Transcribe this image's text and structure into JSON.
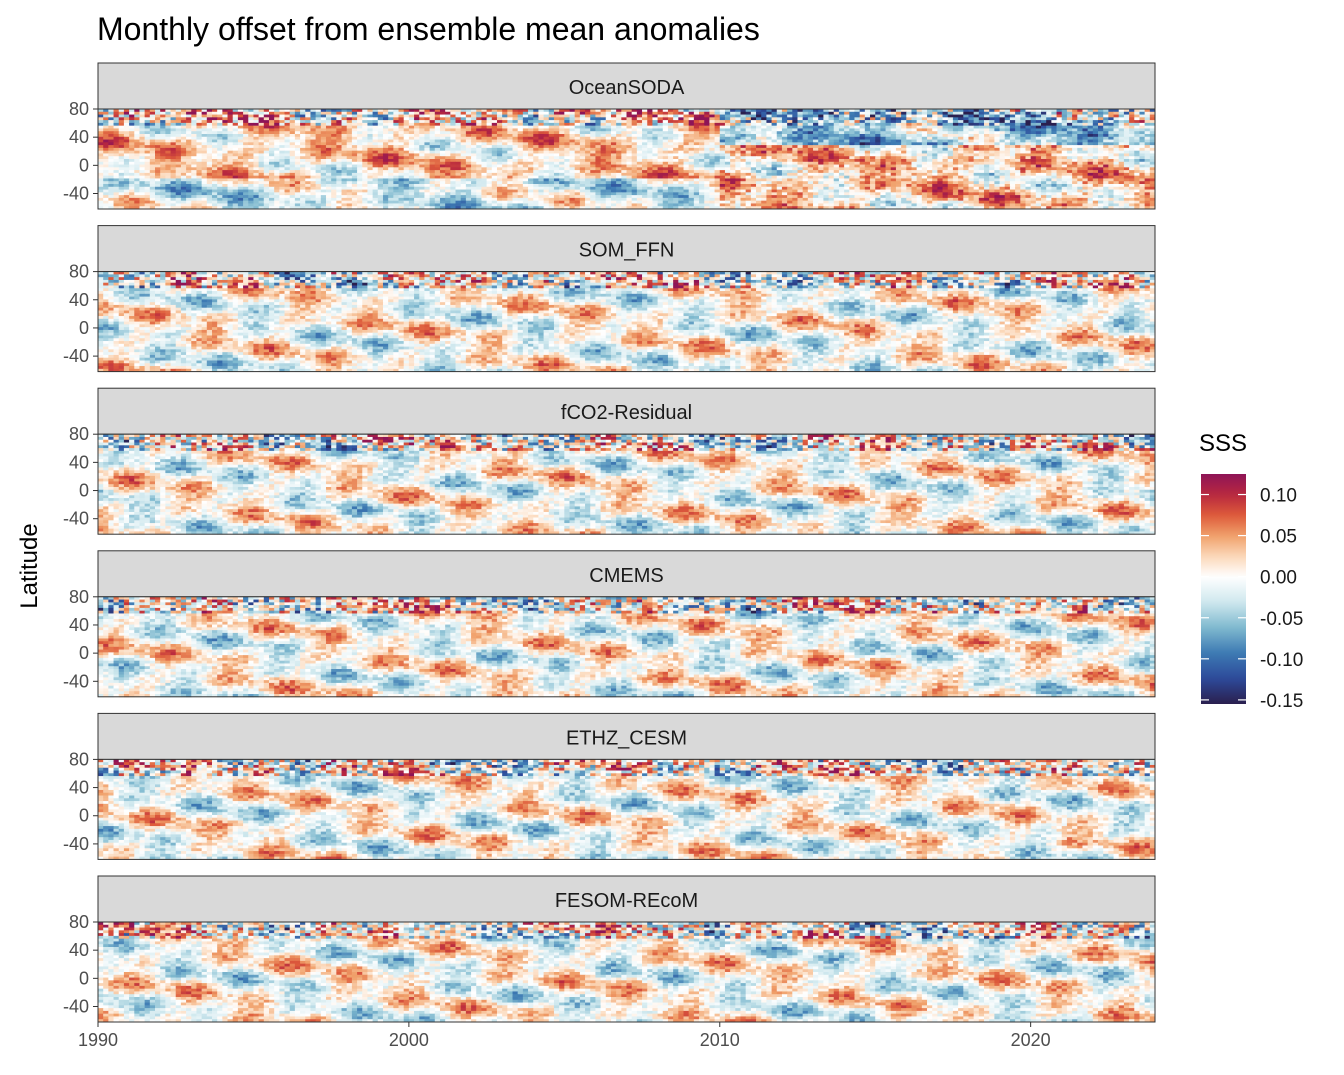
{
  "chart_data": {
    "type": "heatmap",
    "title": "Monthly offset from ensemble mean anomalies",
    "ylabel": "Latitude",
    "xlabel": "",
    "xlim": [
      1990,
      2024
    ],
    "ylim": [
      -62,
      80
    ],
    "x_ticks": [
      "1990",
      "2000",
      "2010",
      "2020"
    ],
    "x_tick_values": [
      1990,
      2000,
      2010,
      2020
    ],
    "y_ticks": [
      "80",
      "40",
      "0",
      "-40"
    ],
    "y_tick_values": [
      80,
      40,
      0,
      -40
    ],
    "panels": [
      {
        "name": "OceanSODA",
        "regime_shift_year": 2010
      },
      {
        "name": "SOM_FFN"
      },
      {
        "name": "fCO2-Residual"
      },
      {
        "name": "CMEMS"
      },
      {
        "name": "ETHZ_CESM"
      },
      {
        "name": "FESOM-REcoM"
      }
    ],
    "legend": {
      "title": "SSS",
      "placement": "right",
      "limits": [
        -0.155,
        0.125
      ],
      "ticks": [
        "0.10",
        "0.05",
        "0.00",
        "-0.05",
        "-0.10",
        "-0.15"
      ],
      "tick_values": [
        0.1,
        0.05,
        0.0,
        -0.05,
        -0.1,
        -0.15
      ],
      "palette": [
        "#2a1f4e",
        "#2d4a9a",
        "#3d7ab3",
        "#7fb9cf",
        "#cfe8ee",
        "#ffffff",
        "#fbd7b8",
        "#f0a06a",
        "#dd5a3b",
        "#b8283f",
        "#8e1457"
      ]
    }
  }
}
